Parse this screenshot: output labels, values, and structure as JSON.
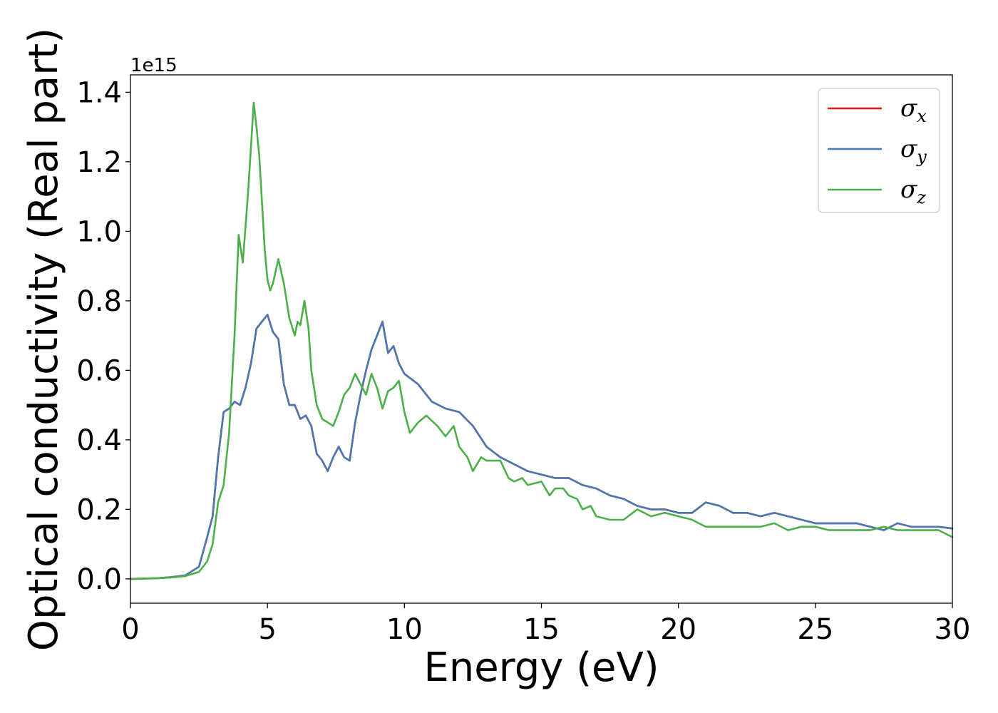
{
  "chart_data": {
    "type": "line",
    "xlabel": "Energy (eV)",
    "ylabel": "Optical conductivity (Real part)",
    "offset_text": "1e15",
    "xlim": [
      0,
      30
    ],
    "ylim": [
      -0.07,
      1.45
    ],
    "x_ticks": [
      0,
      5,
      10,
      15,
      20,
      25,
      30
    ],
    "x_tick_labels": [
      "0",
      "5",
      "10",
      "15",
      "20",
      "25",
      "30"
    ],
    "y_ticks": [
      0.0,
      0.2,
      0.4,
      0.6,
      0.8,
      1.0,
      1.2,
      1.4
    ],
    "y_tick_labels": [
      "0.0",
      "0.2",
      "0.4",
      "0.6",
      "0.8",
      "1.0",
      "1.2",
      "1.4"
    ],
    "grid": false,
    "legend_position": "top-right",
    "series": [
      {
        "name": "σ",
        "subscript": "x",
        "color": "#e41a1c",
        "points": [
          [
            0,
            0
          ],
          [
            1,
            0.002
          ],
          [
            1.5,
            0.005
          ],
          [
            2,
            0.01
          ],
          [
            2.5,
            0.035
          ],
          [
            2.8,
            0.12
          ],
          [
            3.0,
            0.18
          ],
          [
            3.2,
            0.35
          ],
          [
            3.4,
            0.48
          ],
          [
            3.6,
            0.49
          ],
          [
            3.8,
            0.51
          ],
          [
            4.0,
            0.5
          ],
          [
            4.2,
            0.55
          ],
          [
            4.4,
            0.62
          ],
          [
            4.6,
            0.72
          ],
          [
            4.8,
            0.74
          ],
          [
            5.0,
            0.76
          ],
          [
            5.2,
            0.71
          ],
          [
            5.4,
            0.69
          ],
          [
            5.6,
            0.56
          ],
          [
            5.8,
            0.5
          ],
          [
            6.0,
            0.5
          ],
          [
            6.2,
            0.46
          ],
          [
            6.4,
            0.47
          ],
          [
            6.6,
            0.44
          ],
          [
            6.8,
            0.36
          ],
          [
            7.0,
            0.34
          ],
          [
            7.2,
            0.31
          ],
          [
            7.4,
            0.35
          ],
          [
            7.6,
            0.38
          ],
          [
            7.8,
            0.35
          ],
          [
            8.0,
            0.34
          ],
          [
            8.2,
            0.45
          ],
          [
            8.4,
            0.53
          ],
          [
            8.6,
            0.6
          ],
          [
            8.8,
            0.66
          ],
          [
            9.0,
            0.7
          ],
          [
            9.2,
            0.74
          ],
          [
            9.4,
            0.65
          ],
          [
            9.6,
            0.67
          ],
          [
            9.8,
            0.62
          ],
          [
            10.0,
            0.59
          ],
          [
            10.5,
            0.56
          ],
          [
            11.0,
            0.51
          ],
          [
            11.5,
            0.49
          ],
          [
            12.0,
            0.48
          ],
          [
            12.5,
            0.44
          ],
          [
            13.0,
            0.38
          ],
          [
            13.5,
            0.35
          ],
          [
            14.0,
            0.33
          ],
          [
            14.5,
            0.31
          ],
          [
            15.0,
            0.3
          ],
          [
            15.5,
            0.29
          ],
          [
            16.0,
            0.29
          ],
          [
            16.5,
            0.27
          ],
          [
            17.0,
            0.26
          ],
          [
            17.5,
            0.24
          ],
          [
            18.0,
            0.23
          ],
          [
            18.5,
            0.21
          ],
          [
            19.0,
            0.2
          ],
          [
            19.5,
            0.2
          ],
          [
            20.0,
            0.19
          ],
          [
            20.5,
            0.19
          ],
          [
            21.0,
            0.22
          ],
          [
            21.5,
            0.21
          ],
          [
            22.0,
            0.19
          ],
          [
            22.5,
            0.19
          ],
          [
            23.0,
            0.18
          ],
          [
            23.5,
            0.19
          ],
          [
            24.0,
            0.18
          ],
          [
            24.5,
            0.17
          ],
          [
            25.0,
            0.16
          ],
          [
            25.5,
            0.16
          ],
          [
            26.0,
            0.16
          ],
          [
            26.5,
            0.16
          ],
          [
            27.0,
            0.15
          ],
          [
            27.5,
            0.14
          ],
          [
            28.0,
            0.16
          ],
          [
            28.5,
            0.15
          ],
          [
            29.0,
            0.15
          ],
          [
            29.5,
            0.15
          ],
          [
            30.0,
            0.145
          ]
        ]
      },
      {
        "name": "σ",
        "subscript": "y",
        "color": "#4a78b0",
        "points": [
          [
            0,
            0
          ],
          [
            1,
            0.002
          ],
          [
            1.5,
            0.005
          ],
          [
            2,
            0.01
          ],
          [
            2.5,
            0.035
          ],
          [
            2.8,
            0.12
          ],
          [
            3.0,
            0.18
          ],
          [
            3.2,
            0.35
          ],
          [
            3.4,
            0.48
          ],
          [
            3.6,
            0.49
          ],
          [
            3.8,
            0.51
          ],
          [
            4.0,
            0.5
          ],
          [
            4.2,
            0.55
          ],
          [
            4.4,
            0.62
          ],
          [
            4.6,
            0.72
          ],
          [
            4.8,
            0.74
          ],
          [
            5.0,
            0.76
          ],
          [
            5.2,
            0.71
          ],
          [
            5.4,
            0.69
          ],
          [
            5.6,
            0.56
          ],
          [
            5.8,
            0.5
          ],
          [
            6.0,
            0.5
          ],
          [
            6.2,
            0.46
          ],
          [
            6.4,
            0.47
          ],
          [
            6.6,
            0.44
          ],
          [
            6.8,
            0.36
          ],
          [
            7.0,
            0.34
          ],
          [
            7.2,
            0.31
          ],
          [
            7.4,
            0.35
          ],
          [
            7.6,
            0.38
          ],
          [
            7.8,
            0.35
          ],
          [
            8.0,
            0.34
          ],
          [
            8.2,
            0.45
          ],
          [
            8.4,
            0.53
          ],
          [
            8.6,
            0.6
          ],
          [
            8.8,
            0.66
          ],
          [
            9.0,
            0.7
          ],
          [
            9.2,
            0.74
          ],
          [
            9.4,
            0.65
          ],
          [
            9.6,
            0.67
          ],
          [
            9.8,
            0.62
          ],
          [
            10.0,
            0.59
          ],
          [
            10.5,
            0.56
          ],
          [
            11.0,
            0.51
          ],
          [
            11.5,
            0.49
          ],
          [
            12.0,
            0.48
          ],
          [
            12.5,
            0.44
          ],
          [
            13.0,
            0.38
          ],
          [
            13.5,
            0.35
          ],
          [
            14.0,
            0.33
          ],
          [
            14.5,
            0.31
          ],
          [
            15.0,
            0.3
          ],
          [
            15.5,
            0.29
          ],
          [
            16.0,
            0.29
          ],
          [
            16.5,
            0.27
          ],
          [
            17.0,
            0.26
          ],
          [
            17.5,
            0.24
          ],
          [
            18.0,
            0.23
          ],
          [
            18.5,
            0.21
          ],
          [
            19.0,
            0.2
          ],
          [
            19.5,
            0.2
          ],
          [
            20.0,
            0.19
          ],
          [
            20.5,
            0.19
          ],
          [
            21.0,
            0.22
          ],
          [
            21.5,
            0.21
          ],
          [
            22.0,
            0.19
          ],
          [
            22.5,
            0.19
          ],
          [
            23.0,
            0.18
          ],
          [
            23.5,
            0.19
          ],
          [
            24.0,
            0.18
          ],
          [
            24.5,
            0.17
          ],
          [
            25.0,
            0.16
          ],
          [
            25.5,
            0.16
          ],
          [
            26.0,
            0.16
          ],
          [
            26.5,
            0.16
          ],
          [
            27.0,
            0.15
          ],
          [
            27.5,
            0.14
          ],
          [
            28.0,
            0.16
          ],
          [
            28.5,
            0.15
          ],
          [
            29.0,
            0.15
          ],
          [
            29.5,
            0.15
          ],
          [
            30.0,
            0.145
          ]
        ]
      },
      {
        "name": "σ",
        "subscript": "z",
        "color": "#4daf4a",
        "points": [
          [
            0,
            0
          ],
          [
            1,
            0.002
          ],
          [
            1.5,
            0.004
          ],
          [
            2,
            0.008
          ],
          [
            2.5,
            0.02
          ],
          [
            2.8,
            0.05
          ],
          [
            3.0,
            0.1
          ],
          [
            3.2,
            0.22
          ],
          [
            3.4,
            0.27
          ],
          [
            3.6,
            0.42
          ],
          [
            3.8,
            0.7
          ],
          [
            3.95,
            0.99
          ],
          [
            4.1,
            0.91
          ],
          [
            4.3,
            1.12
          ],
          [
            4.5,
            1.37
          ],
          [
            4.6,
            1.3
          ],
          [
            4.7,
            1.22
          ],
          [
            4.9,
            0.95
          ],
          [
            5.0,
            0.86
          ],
          [
            5.1,
            0.83
          ],
          [
            5.2,
            0.85
          ],
          [
            5.4,
            0.92
          ],
          [
            5.6,
            0.85
          ],
          [
            5.8,
            0.75
          ],
          [
            6.0,
            0.7
          ],
          [
            6.1,
            0.74
          ],
          [
            6.2,
            0.73
          ],
          [
            6.35,
            0.8
          ],
          [
            6.5,
            0.72
          ],
          [
            6.6,
            0.6
          ],
          [
            6.8,
            0.5
          ],
          [
            7.0,
            0.46
          ],
          [
            7.2,
            0.45
          ],
          [
            7.4,
            0.44
          ],
          [
            7.6,
            0.48
          ],
          [
            7.8,
            0.53
          ],
          [
            8.0,
            0.55
          ],
          [
            8.2,
            0.59
          ],
          [
            8.4,
            0.56
          ],
          [
            8.6,
            0.53
          ],
          [
            8.8,
            0.59
          ],
          [
            9.0,
            0.55
          ],
          [
            9.2,
            0.49
          ],
          [
            9.4,
            0.54
          ],
          [
            9.6,
            0.55
          ],
          [
            9.8,
            0.57
          ],
          [
            10.0,
            0.48
          ],
          [
            10.2,
            0.42
          ],
          [
            10.5,
            0.45
          ],
          [
            10.8,
            0.47
          ],
          [
            11.2,
            0.44
          ],
          [
            11.5,
            0.41
          ],
          [
            11.8,
            0.44
          ],
          [
            12.0,
            0.38
          ],
          [
            12.3,
            0.35
          ],
          [
            12.5,
            0.31
          ],
          [
            12.8,
            0.35
          ],
          [
            13.0,
            0.34
          ],
          [
            13.3,
            0.34
          ],
          [
            13.5,
            0.34
          ],
          [
            13.8,
            0.29
          ],
          [
            14.0,
            0.28
          ],
          [
            14.3,
            0.29
          ],
          [
            14.5,
            0.27
          ],
          [
            15.0,
            0.28
          ],
          [
            15.3,
            0.24
          ],
          [
            15.5,
            0.26
          ],
          [
            15.8,
            0.26
          ],
          [
            16.0,
            0.24
          ],
          [
            16.3,
            0.23
          ],
          [
            16.5,
            0.2
          ],
          [
            16.8,
            0.21
          ],
          [
            17.0,
            0.18
          ],
          [
            17.5,
            0.17
          ],
          [
            18.0,
            0.17
          ],
          [
            18.5,
            0.2
          ],
          [
            19.0,
            0.18
          ],
          [
            19.5,
            0.19
          ],
          [
            20.0,
            0.18
          ],
          [
            20.5,
            0.17
          ],
          [
            21.0,
            0.15
          ],
          [
            21.5,
            0.15
          ],
          [
            22.0,
            0.15
          ],
          [
            22.5,
            0.15
          ],
          [
            23.0,
            0.15
          ],
          [
            23.5,
            0.16
          ],
          [
            24.0,
            0.14
          ],
          [
            24.5,
            0.15
          ],
          [
            25.0,
            0.15
          ],
          [
            25.5,
            0.14
          ],
          [
            26.0,
            0.14
          ],
          [
            26.5,
            0.14
          ],
          [
            27.0,
            0.14
          ],
          [
            27.5,
            0.15
          ],
          [
            28.0,
            0.14
          ],
          [
            28.5,
            0.14
          ],
          [
            29.0,
            0.14
          ],
          [
            29.5,
            0.14
          ],
          [
            30.0,
            0.12
          ]
        ]
      }
    ]
  }
}
